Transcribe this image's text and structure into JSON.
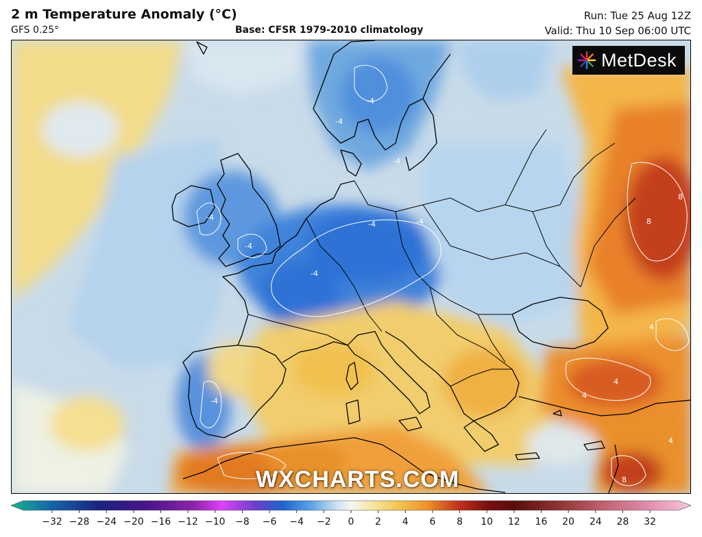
{
  "header": {
    "title": "2 m Temperature Anomaly (°C)",
    "model": "GFS 0.25°",
    "base": "Base: CFSR 1979-2010 climatology",
    "run": "Run: Tue 25 Aug 12Z",
    "valid": "Valid: Thu 10 Sep 06:00 UTC"
  },
  "logo": {
    "text": "MetDesk",
    "icon": "starburst-icon"
  },
  "watermark": "WXCHARTS.COM",
  "legend": {
    "ticks": [
      "−32",
      "−28",
      "−24",
      "−20",
      "−16",
      "−12",
      "−10",
      "−8",
      "−6",
      "−4",
      "−2",
      "0",
      "2",
      "4",
      "6",
      "8",
      "10",
      "12",
      "16",
      "20",
      "24",
      "28",
      "32"
    ],
    "colors": {
      "cold_extreme": "#1ab393",
      "deep_blue": "#1a237e",
      "purple": "#7b1fa2",
      "magenta": "#e040fb",
      "blue": "#1e66d0",
      "light_blue": "#9ec8ea",
      "near_zero": "#f4f6f2",
      "light_yellow": "#f7e6a4",
      "orange": "#f0962a",
      "red": "#c0301a",
      "dark_red": "#7a1010",
      "pink_extreme": "#f4a0c0"
    }
  },
  "map": {
    "contour_labels": [
      "-4",
      "-4",
      "-4",
      "-4",
      "-4",
      "-4",
      "-4",
      "-4",
      "-4",
      "8",
      "8",
      "8",
      "4",
      "4",
      "4",
      "4"
    ]
  }
}
